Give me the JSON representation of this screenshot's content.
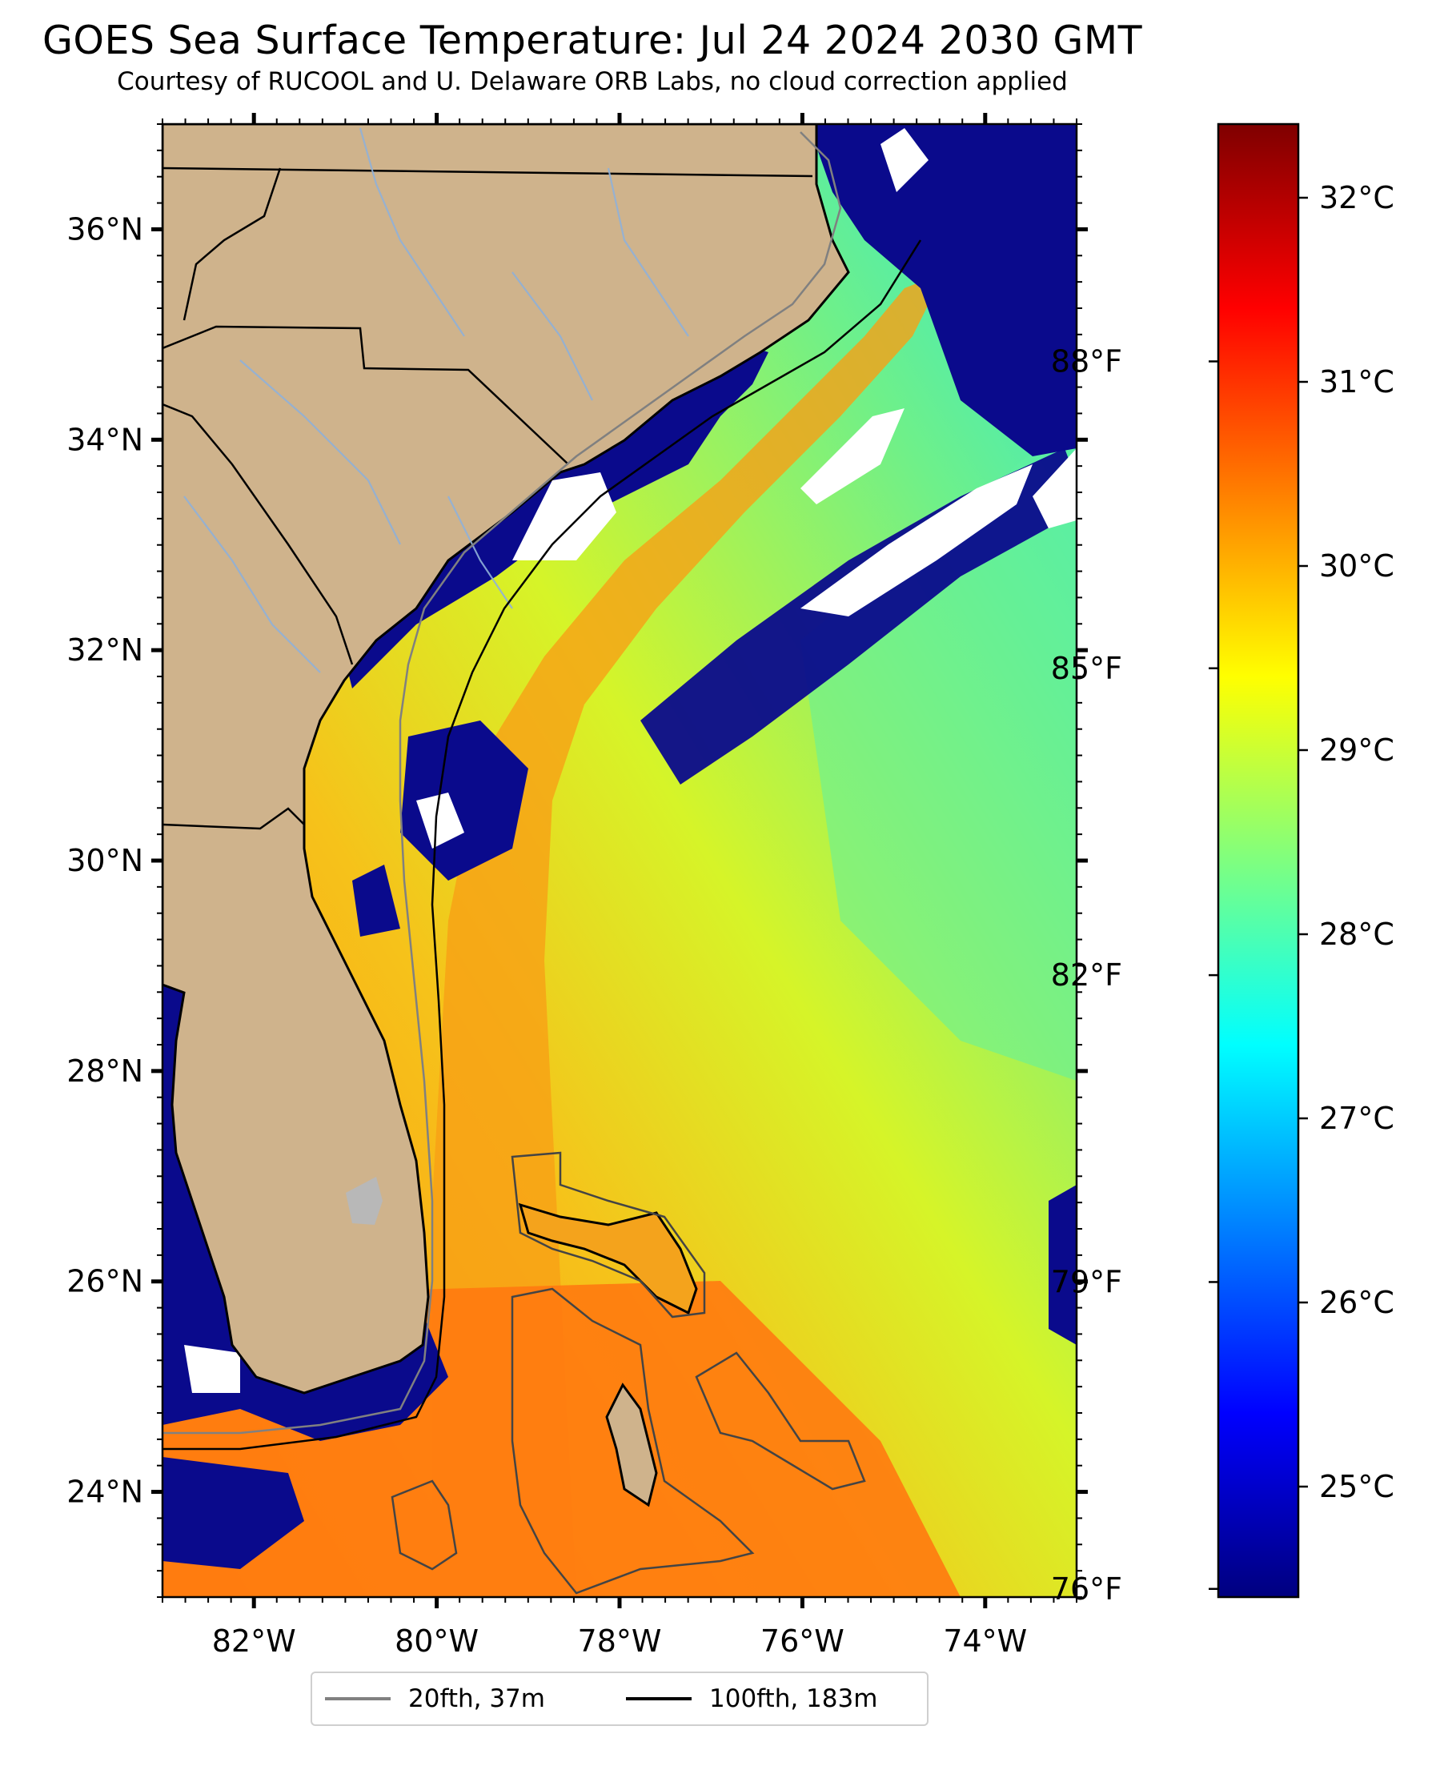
{
  "header": {
    "title": "GOES Sea Surface Temperature: Jul 24 2024 2030 GMT",
    "subtitle": "Courtesy of RUCOOL and U. Delaware ORB Labs, no cloud correction applied"
  },
  "map": {
    "lon_range": [
      -83,
      -73
    ],
    "lat_range": [
      23,
      37
    ],
    "lat_ticks": [
      {
        "value": 24,
        "label": "24°N"
      },
      {
        "value": 26,
        "label": "26°N"
      },
      {
        "value": 28,
        "label": "28°N"
      },
      {
        "value": 30,
        "label": "30°N"
      },
      {
        "value": 32,
        "label": "32°N"
      },
      {
        "value": 34,
        "label": "34°N"
      },
      {
        "value": 36,
        "label": "36°N"
      }
    ],
    "lon_ticks": [
      {
        "value": -82,
        "label": "82°W"
      },
      {
        "value": -80,
        "label": "80°W"
      },
      {
        "value": -78,
        "label": "78°W"
      },
      {
        "value": -76,
        "label": "76°W"
      },
      {
        "value": -74,
        "label": "74°W"
      }
    ],
    "colors": {
      "land": "#cfb38c",
      "ocean_warm": "#f4a31c",
      "ocean_mid": "#c9f02a",
      "ocean_cool": "#3ce8c8",
      "cloud_mask": "#0a0a8c",
      "no_data": "#ffffff",
      "contour_20fth": "#808080",
      "contour_100fth": "#000000"
    }
  },
  "colorbar": {
    "range_c": [
      24.4,
      32.4
    ],
    "celsius_ticks": [
      {
        "value": 25,
        "label": "25°C"
      },
      {
        "value": 26,
        "label": "26°C"
      },
      {
        "value": 27,
        "label": "27°C"
      },
      {
        "value": 28,
        "label": "28°C"
      },
      {
        "value": 29,
        "label": "29°C"
      },
      {
        "value": 30,
        "label": "30°C"
      },
      {
        "value": 31,
        "label": "31°C"
      },
      {
        "value": 32,
        "label": "32°C"
      }
    ],
    "fahrenheit_ticks": [
      {
        "value": 76,
        "label": "76°F"
      },
      {
        "value": 79,
        "label": "79°F"
      },
      {
        "value": 82,
        "label": "82°F"
      },
      {
        "value": 85,
        "label": "85°F"
      },
      {
        "value": 88,
        "label": "88°F"
      }
    ],
    "colormap": [
      "#00007f",
      "#0000ff",
      "#007fff",
      "#00ffff",
      "#7fff7f",
      "#ffff00",
      "#ff7f00",
      "#ff0000",
      "#7f0000"
    ]
  },
  "legend": {
    "items": [
      {
        "label": "20fth, 37m",
        "color": "#808080"
      },
      {
        "label": "100fth, 183m",
        "color": "#000000"
      }
    ]
  }
}
